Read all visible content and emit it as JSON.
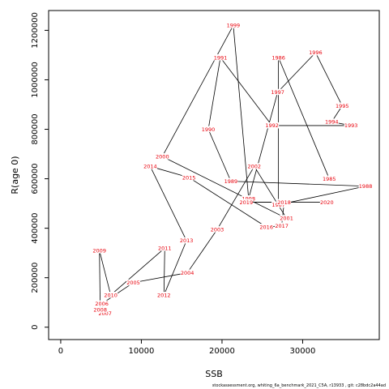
{
  "chart_data": {
    "type": "line",
    "xlabel": "SSB",
    "ylabel": "R(age 0)",
    "xlim": [
      -1500,
      39500
    ],
    "ylim": [
      -50000,
      1280000
    ],
    "xticks": [
      0,
      10000,
      20000,
      30000
    ],
    "yticks": [
      0,
      200000,
      400000,
      600000,
      800000,
      1000000,
      1200000
    ],
    "series": [
      {
        "points": [
          {
            "year": "1985",
            "x": 33300,
            "y": 600000
          },
          {
            "year": "1986",
            "x": 27000,
            "y": 1090000
          },
          {
            "year": "1987",
            "x": 27000,
            "y": 495000
          },
          {
            "year": "1988",
            "x": 37800,
            "y": 570000
          },
          {
            "year": "1989",
            "x": 21100,
            "y": 590000
          },
          {
            "year": "1990",
            "x": 18300,
            "y": 800000
          },
          {
            "year": "1991",
            "x": 19800,
            "y": 1090000
          },
          {
            "year": "1992",
            "x": 26200,
            "y": 815000
          },
          {
            "year": "1993",
            "x": 36000,
            "y": 815000
          },
          {
            "year": "1994",
            "x": 33600,
            "y": 830000
          },
          {
            "year": "1995",
            "x": 34900,
            "y": 895000
          },
          {
            "year": "1996",
            "x": 31600,
            "y": 1110000
          },
          {
            "year": "1997",
            "x": 26900,
            "y": 950000
          },
          {
            "year": "1998",
            "x": 23300,
            "y": 520000
          },
          {
            "year": "1999",
            "x": 21400,
            "y": 1220000
          },
          {
            "year": "2000",
            "x": 12600,
            "y": 690000
          },
          {
            "year": "2001",
            "x": 28000,
            "y": 440000
          },
          {
            "year": "2002",
            "x": 24000,
            "y": 650000
          },
          {
            "year": "2003",
            "x": 19400,
            "y": 395000
          },
          {
            "year": "2004",
            "x": 15700,
            "y": 220000
          },
          {
            "year": "2005",
            "x": 9000,
            "y": 180000
          },
          {
            "year": "2006",
            "x": 5100,
            "y": 95000
          },
          {
            "year": "2007",
            "x": 5500,
            "y": 55000
          },
          {
            "year": "2008",
            "x": 4900,
            "y": 70000
          },
          {
            "year": "2009",
            "x": 4800,
            "y": 310000
          },
          {
            "year": "2010",
            "x": 6200,
            "y": 130000
          },
          {
            "year": "2011",
            "x": 12900,
            "y": 320000
          },
          {
            "year": "2012",
            "x": 12800,
            "y": 130000
          },
          {
            "year": "2013",
            "x": 15600,
            "y": 350000
          },
          {
            "year": "2014",
            "x": 11100,
            "y": 650000
          },
          {
            "year": "2015",
            "x": 15900,
            "y": 605000
          },
          {
            "year": "2016",
            "x": 25500,
            "y": 405000
          },
          {
            "year": "2017",
            "x": 27400,
            "y": 410000
          },
          {
            "year": "2018",
            "x": 27700,
            "y": 505000
          },
          {
            "year": "2019",
            "x": 23000,
            "y": 505000
          },
          {
            "year": "2020",
            "x": 33000,
            "y": 505000
          }
        ]
      }
    ]
  },
  "footnote": "stockassessment.org, whiting_6a_benchmark_2021_C5A, r13933 , git: c28bdc2a44ad"
}
